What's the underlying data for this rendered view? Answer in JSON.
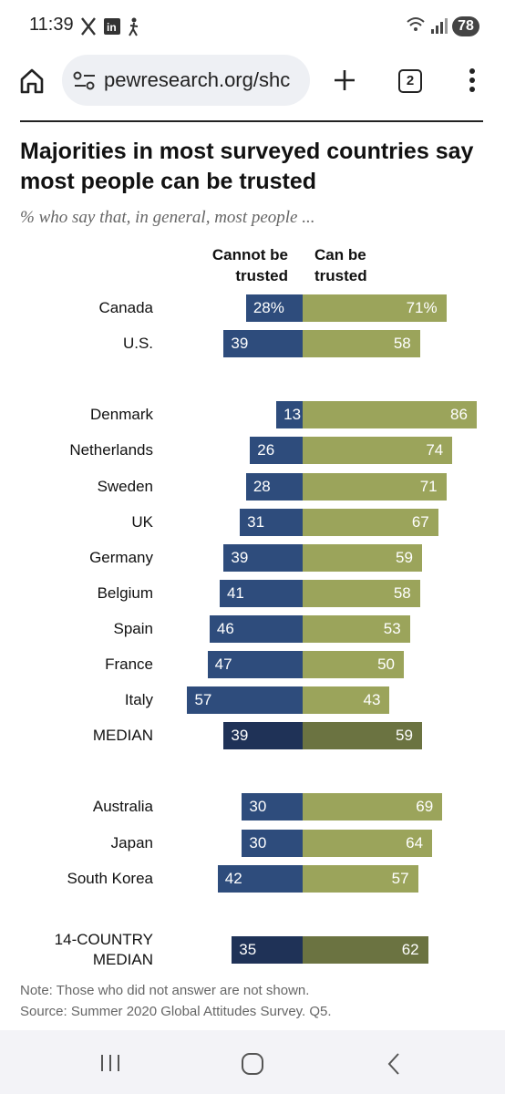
{
  "status_bar": {
    "time": "11:39",
    "battery": "78"
  },
  "browser": {
    "url": "pewresearch.org/shc",
    "tab_count": "2"
  },
  "chart_data": {
    "type": "diverging-bar",
    "title": "Majorities in most surveyed countries say most people can be trusted",
    "subtitle": "% who say that, in general, most people ...",
    "categories": [
      "Canada",
      "U.S.",
      null,
      "Denmark",
      "Netherlands",
      "Sweden",
      "UK",
      "Germany",
      "Belgium",
      "Spain",
      "France",
      "Italy",
      "MEDIAN",
      null,
      "Australia",
      "Japan",
      "South Korea",
      null,
      "14-COUNTRY MEDIAN"
    ],
    "series": [
      {
        "name": "Cannot be trusted",
        "color": "#2e4c7c",
        "direction": "left",
        "values": [
          28,
          39,
          null,
          13,
          26,
          28,
          31,
          39,
          41,
          46,
          47,
          57,
          39,
          null,
          30,
          30,
          42,
          null,
          35
        ],
        "value_labels": [
          "28%",
          null,
          null,
          null,
          null,
          null,
          null,
          null,
          null,
          null,
          null,
          null,
          null,
          null,
          null,
          null,
          null,
          null,
          null
        ],
        "colors": [
          "#2e4c7c",
          "#2e4c7c",
          null,
          "#2e4c7c",
          "#2e4c7c",
          "#2e4c7c",
          "#2e4c7c",
          "#2e4c7c",
          "#2e4c7c",
          "#2e4c7c",
          "#2e4c7c",
          "#2e4c7c",
          "#1f3257",
          null,
          "#2e4c7c",
          "#2e4c7c",
          "#2e4c7c",
          null,
          "#1f3257"
        ]
      },
      {
        "name": "Can be trusted",
        "color": "#9ba45b",
        "direction": "right",
        "values": [
          71,
          58,
          null,
          86,
          74,
          71,
          67,
          59,
          58,
          53,
          50,
          43,
          59,
          null,
          69,
          64,
          57,
          null,
          62
        ],
        "value_labels": [
          "71%",
          null,
          null,
          null,
          null,
          null,
          null,
          null,
          null,
          null,
          null,
          null,
          null,
          null,
          null,
          null,
          null,
          null,
          null
        ],
        "colors": [
          "#9ba45b",
          "#9ba45b",
          null,
          "#9ba45b",
          "#9ba45b",
          "#9ba45b",
          "#9ba45b",
          "#9ba45b",
          "#9ba45b",
          "#9ba45b",
          "#9ba45b",
          "#9ba45b",
          "#6b7341",
          null,
          "#9ba45b",
          "#9ba45b",
          "#9ba45b",
          null,
          "#6b7341"
        ]
      }
    ],
    "note": "Note: Those who did not answer are not shown.",
    "source": "Source: Summer 2020 Global Attitudes Survey. Q5."
  }
}
